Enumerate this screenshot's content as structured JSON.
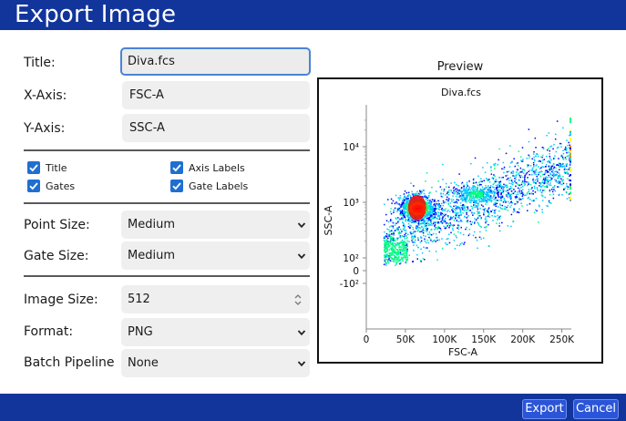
{
  "window": {
    "title": "Export Image"
  },
  "form": {
    "title_label": "Title:",
    "title_value": "Diva.fcs",
    "xaxis_label": "X-Axis:",
    "xaxis_value": "FSC-A",
    "yaxis_label": "Y-Axis:",
    "yaxis_value": "SSC-A",
    "checkboxes": {
      "title": {
        "label": "Title",
        "checked": true
      },
      "axis_labels": {
        "label": "Axis Labels",
        "checked": true
      },
      "gates": {
        "label": "Gates",
        "checked": true
      },
      "gate_labels": {
        "label": "Gate Labels",
        "checked": true
      }
    },
    "point_size_label": "Point Size:",
    "point_size_value": "Medium",
    "gate_size_label": "Gate Size:",
    "gate_size_value": "Medium",
    "image_size_label": "Image Size:",
    "image_size_value": "512",
    "format_label": "Format:",
    "format_value": "PNG",
    "batch_label": "Batch Pipeline",
    "batch_value": "None"
  },
  "preview": {
    "heading": "Preview",
    "chart_data": {
      "type": "scatter",
      "title": "Diva.fcs",
      "xlabel": "FSC-A",
      "ylabel": "SSC-A",
      "x_ticks": [
        "0",
        "50K",
        "100K",
        "150K",
        "200K",
        "250K"
      ],
      "x_tick_values": [
        0,
        50000,
        100000,
        150000,
        200000,
        250000
      ],
      "xlim": [
        0,
        262144
      ],
      "y_scale": "biexponential",
      "y_ticks": [
        "10⁴",
        "10³",
        "10²",
        "0",
        "-10²"
      ],
      "y_tick_values": [
        10000,
        1000,
        100,
        0,
        -100
      ],
      "density_colormap": [
        "#0000ff",
        "#00c8ff",
        "#00ff80",
        "#ffff00",
        "#ff8000",
        "#ff0000"
      ],
      "populations": [
        {
          "x": 65000,
          "y": 800,
          "density": "peak"
        },
        {
          "x": 140000,
          "y": 1400,
          "density": "moderate"
        },
        {
          "x": 30000,
          "y": 160,
          "density": "moderate"
        }
      ],
      "grid": false
    }
  },
  "buttons": {
    "export": "Export",
    "cancel": "Cancel"
  }
}
